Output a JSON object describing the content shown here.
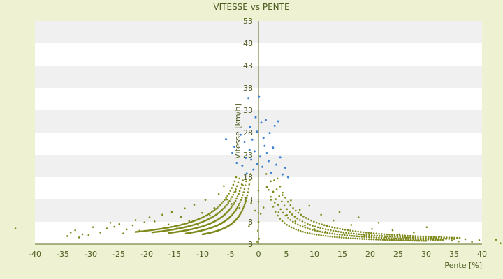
{
  "chart_data": {
    "type": "scatter",
    "title": "VITESSE vs PENTE",
    "xlabel": "Pente [%]",
    "ylabel": "Vitesse [km/h]",
    "xlim": [
      -40,
      40
    ],
    "ylim": [
      3,
      53
    ],
    "x_ticks": [
      -40,
      -35,
      -30,
      -25,
      -20,
      -15,
      -10,
      -5,
      0,
      5,
      10,
      15,
      20,
      25,
      30,
      35,
      40
    ],
    "y_ticks": [
      3,
      8,
      13,
      18,
      23,
      28,
      33,
      38,
      43,
      48,
      53
    ],
    "grid": "horizontal bands",
    "colors": {
      "background": "#eef2d2",
      "plot_band_light": "#ffffff",
      "plot_band_dark": "#f0f0f0",
      "axis": "#5a6a1e",
      "series_main": "#7f8a1c",
      "series_secondary": "#3a7fd0"
    },
    "series": [
      {
        "name": "",
        "color": "#7f8a1c",
        "points": [
          [
            -43.5,
            6.5
          ],
          [
            -34.2,
            4.8
          ],
          [
            -33.6,
            5.6
          ],
          [
            -32.8,
            6.1
          ],
          [
            -32.1,
            4.5
          ],
          [
            -31.5,
            5.2
          ],
          [
            -30.4,
            5.0
          ],
          [
            -29.6,
            6.8
          ],
          [
            -28.3,
            5.6
          ],
          [
            -27.1,
            6.5
          ],
          [
            -26.5,
            7.8
          ],
          [
            -25.8,
            6.9
          ],
          [
            -24.9,
            7.5
          ],
          [
            -24.2,
            5.4
          ],
          [
            -23.6,
            6.3
          ],
          [
            -22.5,
            7.2
          ],
          [
            -22.0,
            8.4
          ],
          [
            -21.3,
            6.0
          ],
          [
            -20.4,
            7.9
          ],
          [
            -19.5,
            9.0
          ],
          [
            -18.6,
            8.1
          ],
          [
            -17.8,
            5.8
          ],
          [
            -17.2,
            9.6
          ],
          [
            -16.1,
            7.4
          ],
          [
            -15.5,
            10.2
          ],
          [
            -14.6,
            6.5
          ],
          [
            -13.9,
            9.1
          ],
          [
            -13.2,
            11.0
          ],
          [
            -12.4,
            8.2
          ],
          [
            -11.5,
            11.8
          ],
          [
            -10.8,
            7.3
          ],
          [
            -10.1,
            10.0
          ],
          [
            -9.5,
            12.9
          ],
          [
            -8.7,
            9.4
          ],
          [
            -7.9,
            11.1
          ],
          [
            -7.1,
            14.2
          ],
          [
            -6.2,
            16.0
          ],
          [
            -5.6,
            13.0
          ],
          [
            -4.8,
            12.0
          ],
          [
            -4.1,
            14.8
          ],
          [
            -3.4,
            11.1
          ],
          [
            -2.8,
            16.2
          ],
          [
            -2.1,
            13.5
          ],
          [
            -1.7,
            7.0
          ],
          [
            -1.3,
            12.2
          ],
          [
            -0.6,
            10.5
          ],
          [
            -0.2,
            3.5
          ],
          [
            -0.1,
            6.0
          ],
          [
            0.0,
            8.0
          ],
          [
            0.0,
            10.0
          ],
          [
            0.0,
            12.5
          ],
          [
            0.0,
            15.0
          ],
          [
            0.1,
            4.2
          ],
          [
            0.4,
            9.8
          ],
          [
            0.9,
            11.2
          ],
          [
            1.5,
            15.8
          ],
          [
            2.2,
            13.6
          ],
          [
            2.9,
            12.3
          ],
          [
            3.6,
            10.1
          ],
          [
            4.3,
            14.0
          ],
          [
            5.1,
            9.5
          ],
          [
            5.8,
            12.8
          ],
          [
            6.6,
            8.1
          ],
          [
            7.4,
            10.7
          ],
          [
            8.3,
            7.2
          ],
          [
            9.1,
            11.6
          ],
          [
            10.0,
            6.4
          ],
          [
            11.2,
            9.6
          ],
          [
            12.0,
            5.8
          ],
          [
            13.4,
            8.3
          ],
          [
            14.5,
            10.2
          ],
          [
            15.3,
            5.3
          ],
          [
            16.6,
            7.3
          ],
          [
            17.9,
            9.0
          ],
          [
            19.0,
            4.9
          ],
          [
            20.3,
            6.4
          ],
          [
            21.5,
            7.8
          ],
          [
            22.7,
            4.6
          ],
          [
            24.0,
            6.1
          ],
          [
            25.2,
            5.2
          ],
          [
            26.4,
            4.4
          ],
          [
            27.8,
            5.6
          ],
          [
            29.0,
            4.2
          ],
          [
            30.1,
            6.8
          ],
          [
            31.3,
            3.9
          ],
          [
            32.4,
            4.7
          ],
          [
            33.5,
            4.2
          ],
          [
            34.6,
            3.8
          ],
          [
            35.8,
            3.6
          ],
          [
            37.0,
            4.1
          ],
          [
            38.2,
            3.5
          ],
          [
            39.5,
            3.9
          ],
          [
            42.5,
            4.0
          ],
          [
            43.3,
            3.2
          ]
        ]
      },
      {
        "name": "",
        "color": "#3a7fd0",
        "points": [
          [
            -5.8,
            26.5
          ],
          [
            -4.7,
            23.4
          ],
          [
            -4.3,
            24.8
          ],
          [
            -3.9,
            21.2
          ],
          [
            -3.2,
            27.5
          ],
          [
            -2.9,
            20.6
          ],
          [
            -2.5,
            25.9
          ],
          [
            -2.3,
            22.3
          ],
          [
            -2.1,
            18.8
          ],
          [
            -1.8,
            35.7
          ],
          [
            -1.6,
            24.1
          ],
          [
            -1.5,
            29.3
          ],
          [
            -1.3,
            21.9
          ],
          [
            -1.1,
            26.4
          ],
          [
            -0.9,
            19.7
          ],
          [
            -0.7,
            23.8
          ],
          [
            -0.5,
            31.4
          ],
          [
            -0.3,
            28.2
          ],
          [
            -0.2,
            21.0
          ],
          [
            0.1,
            36.1
          ],
          [
            0.3,
            22.7
          ],
          [
            0.5,
            30.2
          ],
          [
            0.7,
            20.3
          ],
          [
            0.9,
            26.8
          ],
          [
            1.1,
            25.0
          ],
          [
            1.3,
            30.8
          ],
          [
            1.5,
            23.4
          ],
          [
            1.8,
            21.6
          ],
          [
            2.0,
            27.9
          ],
          [
            2.3,
            19.0
          ],
          [
            2.6,
            24.6
          ],
          [
            2.9,
            29.5
          ],
          [
            3.2,
            20.8
          ],
          [
            3.5,
            30.5
          ],
          [
            3.9,
            22.4
          ],
          [
            4.3,
            18.6
          ],
          [
            4.8,
            20.1
          ],
          [
            5.3,
            18.0
          ]
        ]
      }
    ],
    "curves": [
      {
        "name": "",
        "color": "#7f8a1c",
        "k": 22,
        "x_start": 1.4,
        "x_end": 30
      },
      {
        "name": "",
        "color": "#7f8a1c",
        "k": 31,
        "x_start": 2.2,
        "x_end": 33
      },
      {
        "name": "",
        "color": "#7f8a1c",
        "k": 40,
        "x_start": 2.8,
        "x_end": 35
      },
      {
        "name": "",
        "color": "#7f8a1c",
        "k": 50,
        "x_start": 3.4,
        "x_end": 36
      },
      {
        "name": "",
        "color": "#7f8a1c",
        "k": 22,
        "x_start": -1.4,
        "x_end": -10
      },
      {
        "name": "",
        "color": "#7f8a1c",
        "k": 31,
        "x_start": -2.2,
        "x_end": -13
      },
      {
        "name": "",
        "color": "#7f8a1c",
        "k": 40,
        "x_start": -2.8,
        "x_end": -16
      },
      {
        "name": "",
        "color": "#7f8a1c",
        "k": 50,
        "x_start": -3.4,
        "x_end": -19
      },
      {
        "name": "",
        "color": "#7f8a1c",
        "k": 60,
        "x_start": -4.0,
        "x_end": -22
      }
    ]
  }
}
